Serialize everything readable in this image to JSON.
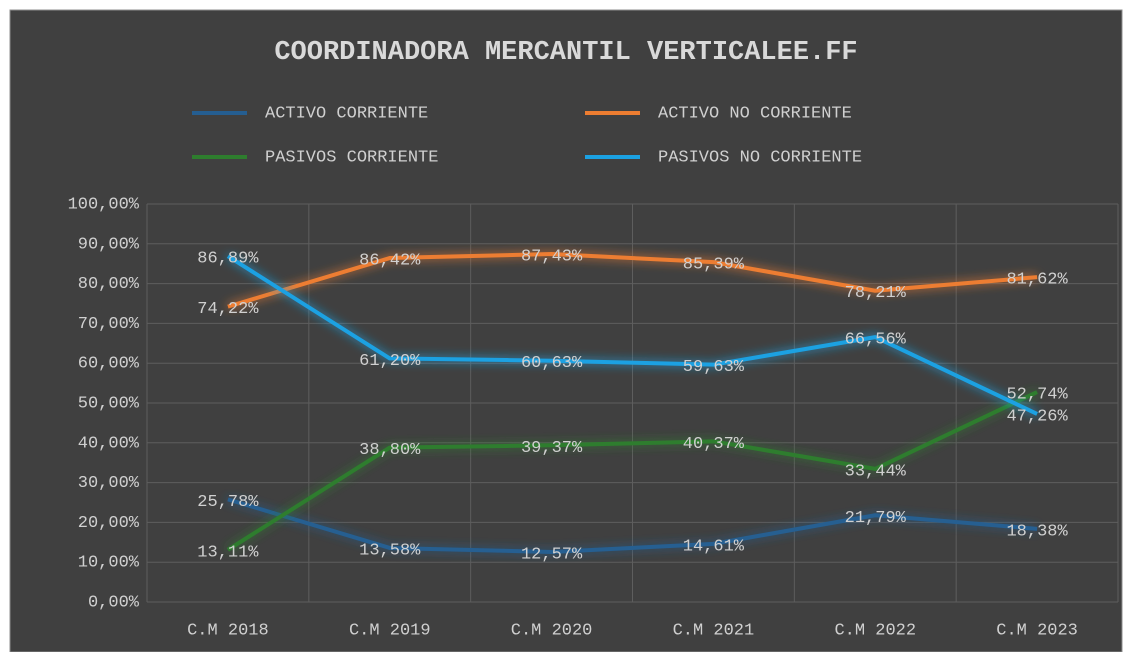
{
  "chart_data": {
    "type": "line",
    "title": "COORDINADORA MERCANTIL VERTICALEE.FF",
    "categories": [
      "C.M 2018",
      "C.M 2019",
      "C.M 2020",
      "C.M 2021",
      "C.M 2022",
      "C.M 2023"
    ],
    "series": [
      {
        "name": "ACTIVO CORRIENTE",
        "color": "#255e91",
        "values": [
          25.78,
          13.58,
          12.57,
          14.61,
          21.79,
          18.38
        ],
        "value_labels": [
          "25,78%",
          "13,58%",
          "12,57%",
          "14,61%",
          "21,79%",
          "18,38%"
        ]
      },
      {
        "name": "ACTIVO NO CORRIENTE",
        "color": "#ed7d31",
        "values": [
          74.22,
          86.42,
          87.43,
          85.39,
          78.21,
          81.62
        ],
        "value_labels": [
          "74,22%",
          "86,42%",
          "87,43%",
          "85,39%",
          "78,21%",
          "81,62%"
        ]
      },
      {
        "name": "PASIVOS CORRIENTE",
        "color": "#2e7d2e",
        "values": [
          13.11,
          38.8,
          39.37,
          40.37,
          33.44,
          52.74
        ],
        "value_labels": [
          "13,11%",
          "38,80%",
          "39,37%",
          "40,37%",
          "33,44%",
          "52,74%"
        ]
      },
      {
        "name": "PASIVOS NO CORRIENTE",
        "color": "#1ba1e2",
        "values": [
          86.89,
          61.2,
          60.63,
          59.63,
          66.56,
          47.26
        ],
        "value_labels": [
          "86,89%",
          "61,20%",
          "60,63%",
          "59,63%",
          "66,56%",
          "47,26%"
        ]
      }
    ],
    "ylim": [
      0,
      100
    ],
    "yticks": [
      {
        "value": 0,
        "label": "0,00%"
      },
      {
        "value": 10,
        "label": "10,00%"
      },
      {
        "value": 20,
        "label": "20,00%"
      },
      {
        "value": 30,
        "label": "30,00%"
      },
      {
        "value": 40,
        "label": "40,00%"
      },
      {
        "value": 50,
        "label": "50,00%"
      },
      {
        "value": 60,
        "label": "60,00%"
      },
      {
        "value": 70,
        "label": "70,00%"
      },
      {
        "value": 80,
        "label": "80,00%"
      },
      {
        "value": 90,
        "label": "90,00%"
      },
      {
        "value": 100,
        "label": "100,00%"
      }
    ],
    "grid": true
  }
}
